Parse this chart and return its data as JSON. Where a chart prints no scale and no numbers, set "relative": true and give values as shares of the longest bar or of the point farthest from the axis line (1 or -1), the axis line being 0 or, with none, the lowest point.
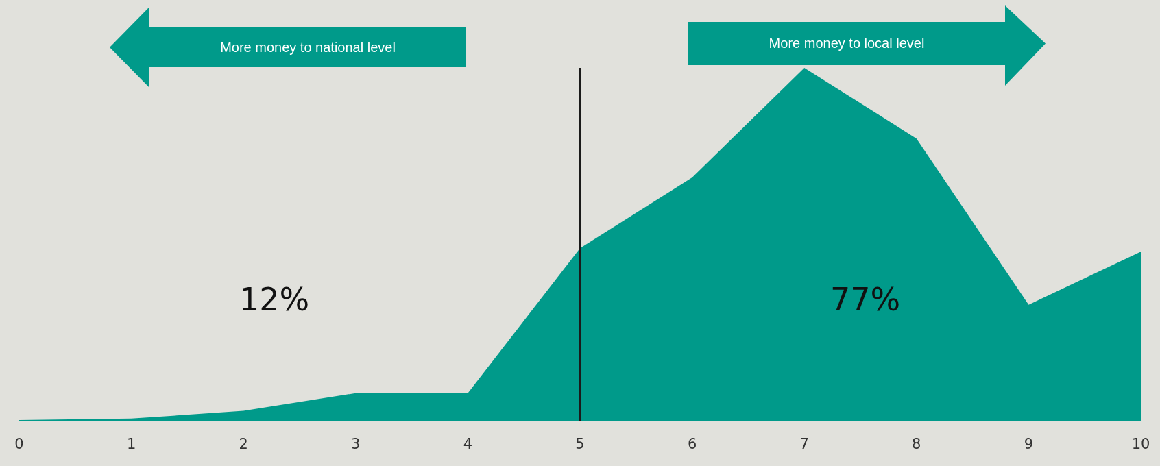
{
  "chart_data": {
    "type": "area",
    "relative": true,
    "categories": [
      "0",
      "1",
      "2",
      "3",
      "4",
      "5",
      "6",
      "7",
      "8",
      "9",
      "10"
    ],
    "series": [
      {
        "color": "#009a8a",
        "values": [
          0.004,
          0.008,
          0.03,
          0.08,
          0.08,
          0.49,
          0.69,
          1,
          0.8,
          0.33,
          0.48
        ]
      }
    ],
    "ref_lines": [
      {
        "axis": "x",
        "value": "5",
        "color": "#1a1a1a"
      }
    ],
    "annotations": [
      "More money to national level",
      "More money to local level",
      "12%",
      "77%"
    ],
    "grid": false
  }
}
